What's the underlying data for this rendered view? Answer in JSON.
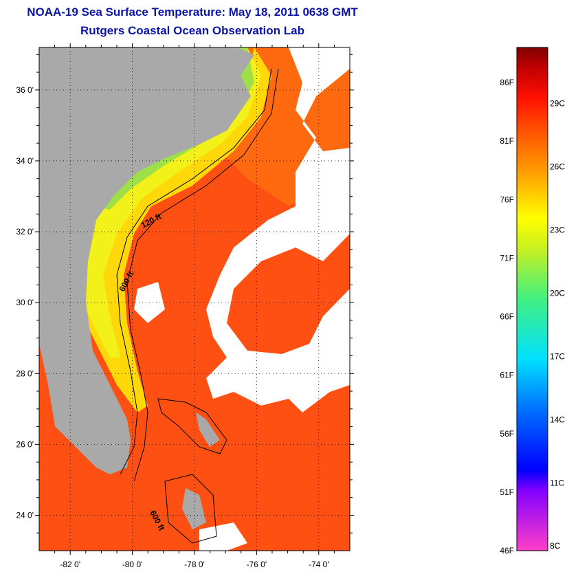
{
  "title": "NOAA-19 Sea Surface Temperature:  May 18, 2011 0638 GMT",
  "subtitle": "Rutgers Coastal Ocean Observation Lab",
  "map": {
    "lon_range": [
      -83,
      -73
    ],
    "lat_range": [
      23,
      37.2
    ],
    "lon_ticks": [
      "-82 0'",
      "-80 0'",
      "-78 0'",
      "-76 0'",
      "-74 0'"
    ],
    "lat_ticks": [
      "24 0'",
      "26 0'",
      "28 0'",
      "30 0'",
      "32 0'",
      "34 0'",
      "36 0'"
    ],
    "contour_labels": [
      "120 ft",
      "600 ft",
      "600 ft"
    ],
    "colors": {
      "land": "#a9a9a9",
      "cloud": "#ffffff",
      "warm_water": "#ff4a10",
      "shelf_water": "#ffe000"
    }
  },
  "colorbar": {
    "fahrenheit_labels": [
      "86F",
      "81F",
      "76F",
      "71F",
      "66F",
      "61F",
      "56F",
      "51F",
      "46F"
    ],
    "celsius_labels": [
      "29C",
      "26C",
      "23C",
      "20C",
      "17C",
      "14C",
      "11C",
      "8C"
    ]
  }
}
